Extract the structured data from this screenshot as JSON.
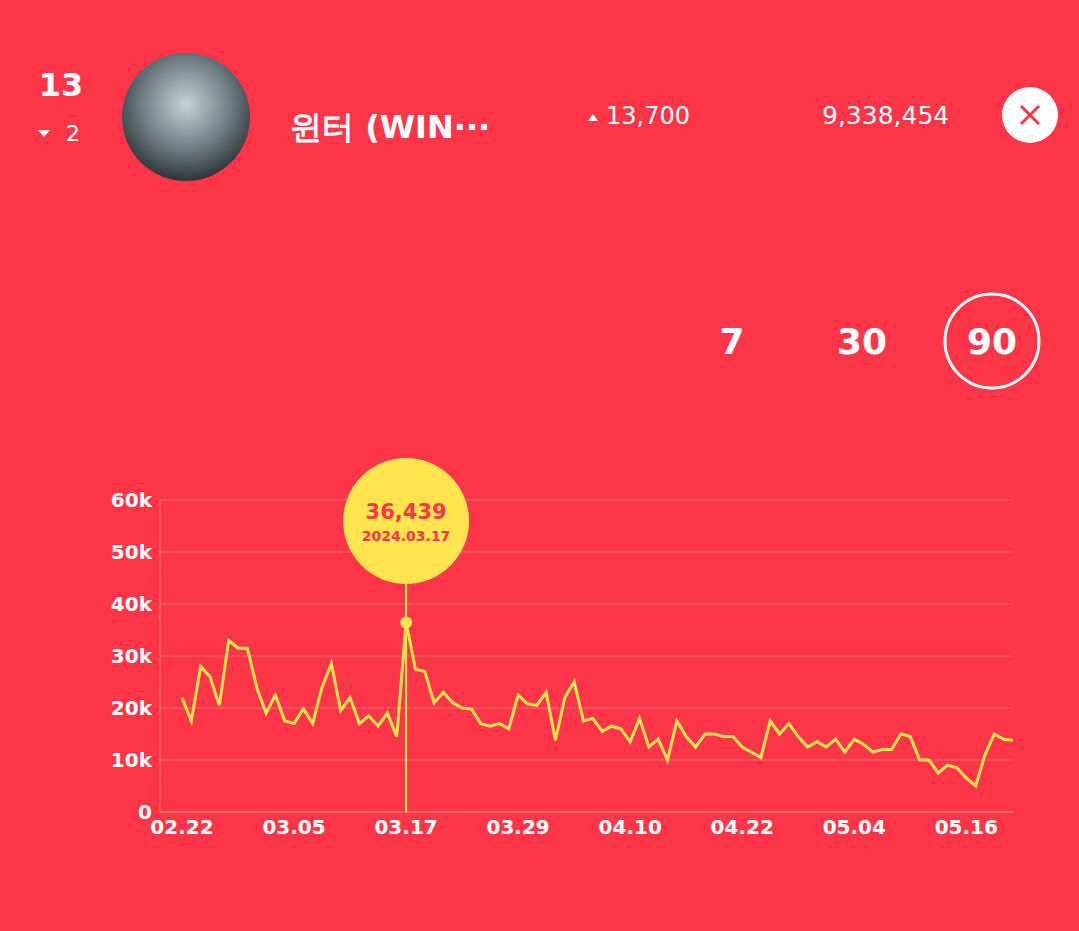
{
  "header": {
    "rank": "13",
    "rank_change": "2",
    "name": "윈터 (WIN···",
    "daily_change": "13,700",
    "total": "9,338,454",
    "periods": [
      "7",
      "30",
      "90"
    ],
    "selected_period": "90"
  },
  "chart_data": {
    "type": "line",
    "categories": [
      "02.22",
      null,
      null,
      null,
      null,
      null,
      null,
      null,
      null,
      null,
      null,
      null,
      "03.05",
      null,
      null,
      null,
      null,
      null,
      null,
      null,
      null,
      null,
      null,
      null,
      "03.17",
      null,
      null,
      null,
      null,
      null,
      null,
      null,
      null,
      null,
      null,
      null,
      "03.29",
      null,
      null,
      null,
      null,
      null,
      null,
      null,
      null,
      null,
      null,
      null,
      "04.10",
      null,
      null,
      null,
      null,
      null,
      null,
      null,
      null,
      null,
      null,
      null,
      "04.22",
      null,
      null,
      null,
      null,
      null,
      null,
      null,
      null,
      null,
      null,
      null,
      "05.04",
      null,
      null,
      null,
      null,
      null,
      null,
      null,
      null,
      null,
      null,
      null,
      "05.16",
      null,
      null,
      null,
      null,
      null
    ],
    "values": [
      22000,
      17500,
      28000,
      26000,
      20500,
      33000,
      31500,
      31500,
      24000,
      19000,
      22500,
      17500,
      17000,
      19800,
      17000,
      24000,
      28500,
      19500,
      22000,
      17000,
      18500,
      16500,
      19000,
      14500,
      36439,
      27500,
      27000,
      21000,
      23000,
      21000,
      20000,
      19800,
      17000,
      16500,
      17000,
      16000,
      22500,
      20800,
      20500,
      23000,
      13800,
      22000,
      25000,
      17500,
      18000,
      15500,
      16500,
      16000,
      13500,
      18000,
      12500,
      14000,
      10000,
      17500,
      14500,
      12500,
      15000,
      15000,
      14500,
      14500,
      12500,
      11500,
      10500,
      17500,
      15000,
      17000,
      14500,
      12500,
      13500,
      12500,
      14000,
      11500,
      14000,
      13000,
      11500,
      12000,
      12000,
      15000,
      14500,
      10000,
      10000,
      7500,
      9000,
      8500,
      6500,
      5000,
      11000,
      15000,
      14000,
      13800
    ],
    "color": "#ffe34f",
    "ylim": [
      0,
      60000
    ],
    "yticks": [
      0,
      {
        "value": 10000,
        "label": "10k"
      },
      {
        "value": 20000,
        "label": "20k"
      },
      {
        "value": 30000,
        "label": "30k"
      },
      {
        "value": 40000,
        "label": "40k"
      },
      {
        "value": 50000,
        "label": "50k"
      },
      {
        "value": 60000,
        "label": "60k"
      }
    ],
    "grid": true,
    "annotation": {
      "value": 36439,
      "label": "36,439",
      "date": "2024.03.17"
    }
  }
}
